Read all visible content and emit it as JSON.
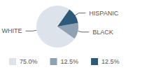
{
  "chart_data": {
    "type": "pie",
    "categories": [
      "WHITE",
      "BLACK",
      "HISPANIC"
    ],
    "values": [
      75,
      12.5,
      12.5
    ],
    "value_labels": [
      "75.0%",
      "12.5%",
      "12.5%"
    ],
    "colors": [
      "#dce3ea",
      "#8fa2b4",
      "#2e5a7a"
    ],
    "legend": "bottom"
  }
}
